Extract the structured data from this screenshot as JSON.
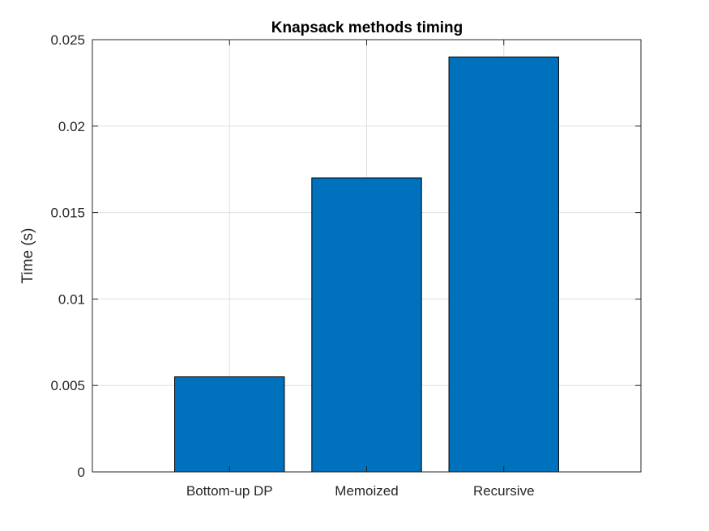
{
  "chart_data": {
    "type": "bar",
    "title": "Knapsack methods timing",
    "xlabel": "",
    "ylabel": "Time (s)",
    "categories": [
      "Bottom-up DP",
      "Memoized",
      "Recursive"
    ],
    "values": [
      0.0055,
      0.017,
      0.024
    ],
    "ylim": [
      0,
      0.025
    ],
    "yticks": [
      0,
      0.005,
      0.01,
      0.015,
      0.02,
      0.025
    ],
    "ytick_labels": [
      "0",
      "0.005",
      "0.01",
      "0.015",
      "0.02",
      "0.025"
    ],
    "grid": true,
    "bar_color": "#0072BD",
    "edge_color": "#000000"
  }
}
